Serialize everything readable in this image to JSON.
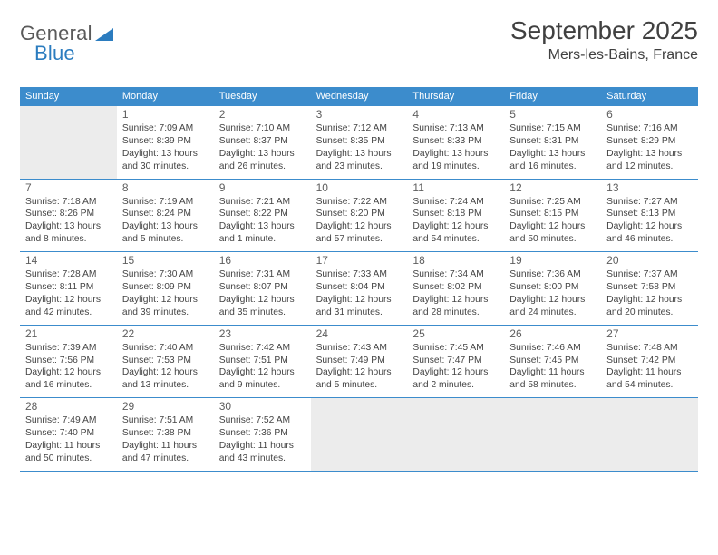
{
  "logo": {
    "text1": "General",
    "text2": "Blue"
  },
  "title": "September 2025",
  "location": "Mers-les-Bains, France",
  "colors": {
    "header_bg": "#3c8ccc",
    "header_text": "#ffffff",
    "page_bg": "#ffffff",
    "empty_cell": "#ececec",
    "text": "#404040",
    "line": "#3c8ccc",
    "logo_gray": "#5a5a5a",
    "logo_blue": "#2b7cbf"
  },
  "days_of_week": [
    "Sunday",
    "Monday",
    "Tuesday",
    "Wednesday",
    "Thursday",
    "Friday",
    "Saturday"
  ],
  "weeks": [
    [
      null,
      {
        "n": "1",
        "sunrise": "7:09 AM",
        "sunset": "8:39 PM",
        "daylight": "13 hours and 30 minutes."
      },
      {
        "n": "2",
        "sunrise": "7:10 AM",
        "sunset": "8:37 PM",
        "daylight": "13 hours and 26 minutes."
      },
      {
        "n": "3",
        "sunrise": "7:12 AM",
        "sunset": "8:35 PM",
        "daylight": "13 hours and 23 minutes."
      },
      {
        "n": "4",
        "sunrise": "7:13 AM",
        "sunset": "8:33 PM",
        "daylight": "13 hours and 19 minutes."
      },
      {
        "n": "5",
        "sunrise": "7:15 AM",
        "sunset": "8:31 PM",
        "daylight": "13 hours and 16 minutes."
      },
      {
        "n": "6",
        "sunrise": "7:16 AM",
        "sunset": "8:29 PM",
        "daylight": "13 hours and 12 minutes."
      }
    ],
    [
      {
        "n": "7",
        "sunrise": "7:18 AM",
        "sunset": "8:26 PM",
        "daylight": "13 hours and 8 minutes."
      },
      {
        "n": "8",
        "sunrise": "7:19 AM",
        "sunset": "8:24 PM",
        "daylight": "13 hours and 5 minutes."
      },
      {
        "n": "9",
        "sunrise": "7:21 AM",
        "sunset": "8:22 PM",
        "daylight": "13 hours and 1 minute."
      },
      {
        "n": "10",
        "sunrise": "7:22 AM",
        "sunset": "8:20 PM",
        "daylight": "12 hours and 57 minutes."
      },
      {
        "n": "11",
        "sunrise": "7:24 AM",
        "sunset": "8:18 PM",
        "daylight": "12 hours and 54 minutes."
      },
      {
        "n": "12",
        "sunrise": "7:25 AM",
        "sunset": "8:15 PM",
        "daylight": "12 hours and 50 minutes."
      },
      {
        "n": "13",
        "sunrise": "7:27 AM",
        "sunset": "8:13 PM",
        "daylight": "12 hours and 46 minutes."
      }
    ],
    [
      {
        "n": "14",
        "sunrise": "7:28 AM",
        "sunset": "8:11 PM",
        "daylight": "12 hours and 42 minutes."
      },
      {
        "n": "15",
        "sunrise": "7:30 AM",
        "sunset": "8:09 PM",
        "daylight": "12 hours and 39 minutes."
      },
      {
        "n": "16",
        "sunrise": "7:31 AM",
        "sunset": "8:07 PM",
        "daylight": "12 hours and 35 minutes."
      },
      {
        "n": "17",
        "sunrise": "7:33 AM",
        "sunset": "8:04 PM",
        "daylight": "12 hours and 31 minutes."
      },
      {
        "n": "18",
        "sunrise": "7:34 AM",
        "sunset": "8:02 PM",
        "daylight": "12 hours and 28 minutes."
      },
      {
        "n": "19",
        "sunrise": "7:36 AM",
        "sunset": "8:00 PM",
        "daylight": "12 hours and 24 minutes."
      },
      {
        "n": "20",
        "sunrise": "7:37 AM",
        "sunset": "7:58 PM",
        "daylight": "12 hours and 20 minutes."
      }
    ],
    [
      {
        "n": "21",
        "sunrise": "7:39 AM",
        "sunset": "7:56 PM",
        "daylight": "12 hours and 16 minutes."
      },
      {
        "n": "22",
        "sunrise": "7:40 AM",
        "sunset": "7:53 PM",
        "daylight": "12 hours and 13 minutes."
      },
      {
        "n": "23",
        "sunrise": "7:42 AM",
        "sunset": "7:51 PM",
        "daylight": "12 hours and 9 minutes."
      },
      {
        "n": "24",
        "sunrise": "7:43 AM",
        "sunset": "7:49 PM",
        "daylight": "12 hours and 5 minutes."
      },
      {
        "n": "25",
        "sunrise": "7:45 AM",
        "sunset": "7:47 PM",
        "daylight": "12 hours and 2 minutes."
      },
      {
        "n": "26",
        "sunrise": "7:46 AM",
        "sunset": "7:45 PM",
        "daylight": "11 hours and 58 minutes."
      },
      {
        "n": "27",
        "sunrise": "7:48 AM",
        "sunset": "7:42 PM",
        "daylight": "11 hours and 54 minutes."
      }
    ],
    [
      {
        "n": "28",
        "sunrise": "7:49 AM",
        "sunset": "7:40 PM",
        "daylight": "11 hours and 50 minutes."
      },
      {
        "n": "29",
        "sunrise": "7:51 AM",
        "sunset": "7:38 PM",
        "daylight": "11 hours and 47 minutes."
      },
      {
        "n": "30",
        "sunrise": "7:52 AM",
        "sunset": "7:36 PM",
        "daylight": "11 hours and 43 minutes."
      },
      null,
      null,
      null,
      null
    ]
  ]
}
